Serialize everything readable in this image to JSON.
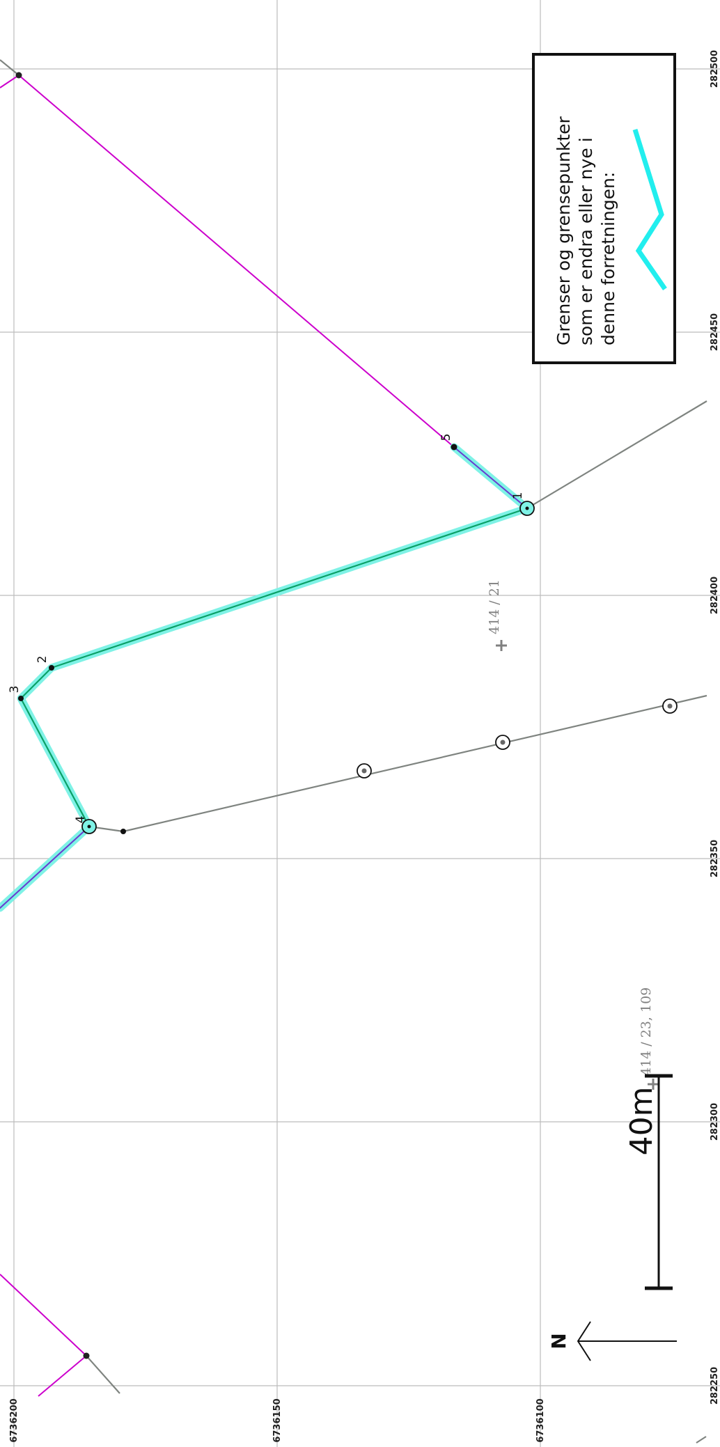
{
  "grid": {
    "vertical_labels": [
      "282500",
      "282450",
      "282400",
      "282350",
      "282300",
      "282250"
    ],
    "horizontal_labels": [
      "6736200",
      "6736150",
      "6736100"
    ]
  },
  "legend": {
    "lines": [
      "Grenser og grensepunkter",
      "som er endra eller nye i",
      "denne forretningen:"
    ]
  },
  "points": [
    "1",
    "2",
    "3",
    "4",
    "5"
  ],
  "parcels": [
    "414 / 21",
    "414 / 23, 109"
  ],
  "scale_bar": {
    "label": "40m"
  },
  "north_arrow": {
    "label": "N"
  },
  "colors": {
    "boundary_magenta": "#cc00cc",
    "boundary_grey": "#808080",
    "changed_highlight": "#40f0e0",
    "changed_line": "#00a060",
    "grid": "#bbbbbb"
  }
}
